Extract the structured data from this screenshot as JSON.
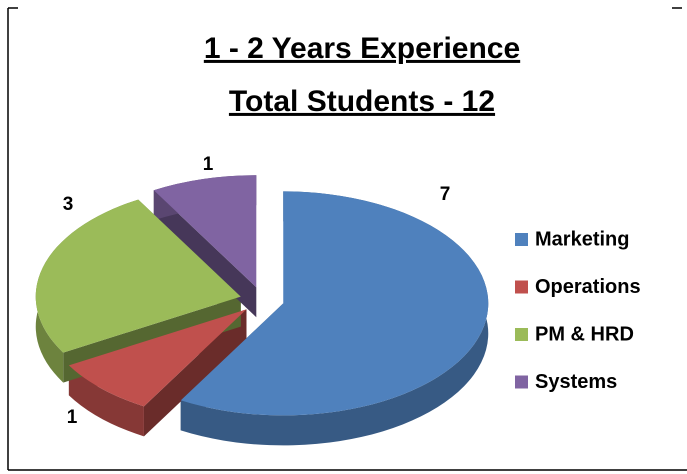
{
  "chart_data": {
    "type": "pie",
    "title": "1 - 2 Years Experience",
    "subtitle": "Total Students - 12",
    "categories": [
      "Marketing",
      "Operations",
      "PM & HRD",
      "Systems"
    ],
    "values": [
      7,
      1,
      3,
      1
    ],
    "colors": [
      "#4f81bd",
      "#c0504d",
      "#9bbb59",
      "#8064a2"
    ],
    "legend": "right"
  }
}
